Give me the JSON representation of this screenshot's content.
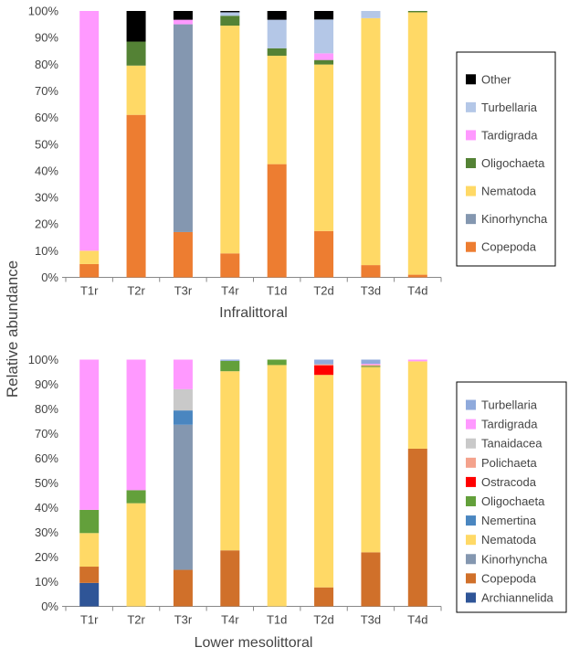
{
  "ylabel": "Relative abundance",
  "chart_data": [
    {
      "type": "bar",
      "stacked": true,
      "title": "",
      "xlabel": "Infralittoral",
      "ylabel": "Relative abundance",
      "ylim": [
        0,
        100
      ],
      "yticks": [
        "0%",
        "10%",
        "20%",
        "30%",
        "40%",
        "50%",
        "60%",
        "70%",
        "80%",
        "90%",
        "100%"
      ],
      "grid": false,
      "legend_position": "right",
      "categories": [
        "T1r",
        "T2r",
        "T3r",
        "T4r",
        "T1d",
        "T2d",
        "T3d",
        "T4d"
      ],
      "series": [
        {
          "name": "Copepoda",
          "color": "#ED7D31",
          "values": [
            5,
            61,
            17,
            9,
            42.5,
            17.4,
            4.6,
            1
          ]
        },
        {
          "name": "Kinorhyncha",
          "color": "#8497B0",
          "values": [
            0,
            0,
            78,
            0,
            0,
            0,
            0,
            0
          ]
        },
        {
          "name": "Nematoda",
          "color": "#FFD966",
          "values": [
            5,
            18.5,
            0,
            85.5,
            40.7,
            62.5,
            92.7,
            98.5
          ]
        },
        {
          "name": "Oligochaeta",
          "color": "#548235",
          "values": [
            0,
            9,
            0,
            3.7,
            2.8,
            1.7,
            0,
            0.5
          ]
        },
        {
          "name": "Tardigrada",
          "color": "#FF99FF",
          "values": [
            90,
            0,
            1.7,
            0,
            0,
            2.5,
            0,
            0
          ]
        },
        {
          "name": "Turbellaria",
          "color": "#B4C7E7",
          "values": [
            0,
            0,
            0,
            1.3,
            10.7,
            12.7,
            2.7,
            0
          ]
        },
        {
          "name": "Other",
          "color": "#000000",
          "values": [
            0,
            11.5,
            3.3,
            0.5,
            3.3,
            3.2,
            0,
            0
          ]
        }
      ]
    },
    {
      "type": "bar",
      "stacked": true,
      "title": "",
      "xlabel": "Lower mesolittoral",
      "ylabel": "Relative abundance",
      "ylim": [
        0,
        100
      ],
      "yticks": [
        "0%",
        "10%",
        "20%",
        "30%",
        "40%",
        "50%",
        "60%",
        "70%",
        "80%",
        "90%",
        "100%"
      ],
      "grid": false,
      "legend_position": "right",
      "categories": [
        "T1r",
        "T2r",
        "T3r",
        "T4r",
        "T1d",
        "T2d",
        "T3d",
        "T4d"
      ],
      "series": [
        {
          "name": "Archiannelida",
          "color": "#2F5597",
          "values": [
            9.5,
            0,
            0,
            0,
            0,
            0,
            0,
            0
          ]
        },
        {
          "name": "Copepoda",
          "color": "#D0702A",
          "values": [
            6.6,
            0,
            14.8,
            22.7,
            0,
            7.7,
            21.9,
            63.9
          ]
        },
        {
          "name": "Kinorhyncha",
          "color": "#8497B0",
          "values": [
            0,
            0,
            58.8,
            0,
            0,
            0,
            0,
            0
          ]
        },
        {
          "name": "Nematoda",
          "color": "#FFD966",
          "values": [
            13.6,
            41.8,
            0,
            72.6,
            97.8,
            86.1,
            75.1,
            35.4
          ]
        },
        {
          "name": "Nemertina",
          "color": "#4A86C0",
          "values": [
            0,
            0,
            5.8,
            0,
            0,
            0,
            0,
            0
          ]
        },
        {
          "name": "Oligochaeta",
          "color": "#63A03B",
          "values": [
            9.4,
            5.3,
            0,
            4.2,
            2.2,
            0,
            0.4,
            0
          ]
        },
        {
          "name": "Ostracoda",
          "color": "#FF0000",
          "values": [
            0,
            0,
            0,
            0,
            0,
            3.9,
            0,
            0
          ]
        },
        {
          "name": "Polichaeta",
          "color": "#F4A28C",
          "values": [
            0,
            0,
            0,
            0,
            0,
            0.4,
            0.5,
            0
          ]
        },
        {
          "name": "Tanaidacea",
          "color": "#C9C9C9",
          "values": [
            0,
            0,
            8.6,
            0,
            0,
            0,
            0,
            0
          ]
        },
        {
          "name": "Tardigrada",
          "color": "#FF99FF",
          "values": [
            60.9,
            52.9,
            12,
            0,
            0,
            0,
            0.4,
            0.7
          ]
        },
        {
          "name": "Turbellaria",
          "color": "#8FAADC",
          "values": [
            0,
            0,
            0,
            0.5,
            0,
            1.9,
            1.7,
            0
          ]
        }
      ]
    }
  ]
}
